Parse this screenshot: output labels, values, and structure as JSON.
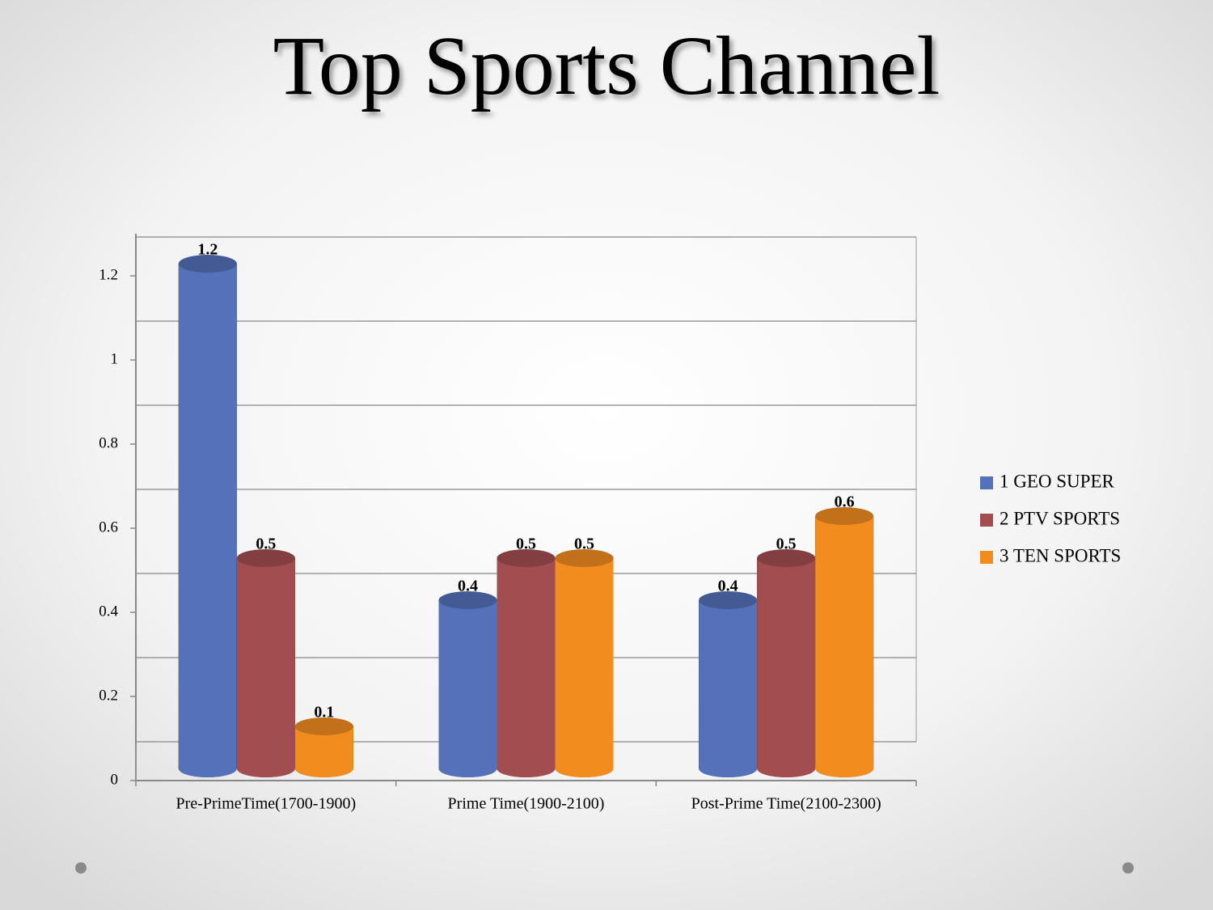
{
  "chart_data": {
    "type": "bar",
    "title": "Top Sports Channel",
    "categories": [
      "Pre-PrimeTime(1700-1900)",
      "Prime Time(1900-2100)",
      "Post-Prime Time(2100-2300)"
    ],
    "series": [
      {
        "name": "1 GEO SUPER",
        "color": "#5571b9",
        "values": [
          1.2,
          0.4,
          0.4
        ]
      },
      {
        "name": "2 PTV SPORTS",
        "color": "#a24d50",
        "values": [
          0.5,
          0.5,
          0.5
        ]
      },
      {
        "name": "3 TEN SPORTS",
        "color": "#f28c1f",
        "values": [
          0.1,
          0.5,
          0.6
        ]
      }
    ],
    "ylim": [
      0,
      1.3
    ],
    "yticks": [
      0,
      0.2,
      0.4,
      0.6,
      0.8,
      1,
      1.2
    ],
    "grid": true,
    "legend": "right"
  }
}
